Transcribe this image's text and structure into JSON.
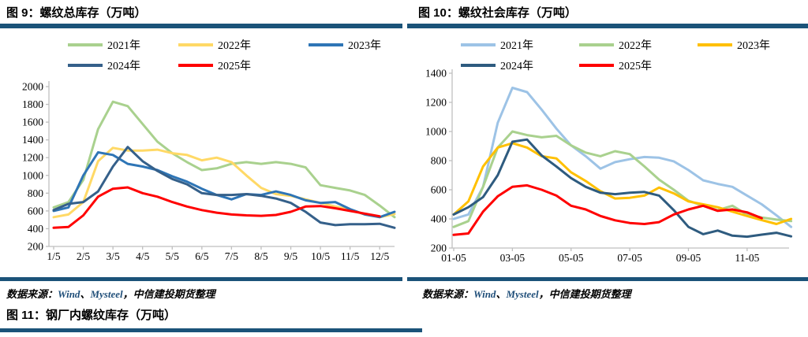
{
  "accent_color": "#1b5379",
  "link_color": "#1f4e79",
  "axis_color": "#bfbfbf",
  "source": {
    "parts": [
      {
        "text": "数据来源：",
        "style": "plain"
      },
      {
        "text": "Wind",
        "style": "link"
      },
      {
        "text": "、",
        "style": "plain"
      },
      {
        "text": "Mysteel",
        "style": "link"
      },
      {
        "text": "，中信建投期货整理",
        "style": "plain"
      }
    ]
  },
  "footer": {
    "next_figure_title": "图 11：钢厂内螺纹库存（万吨）"
  },
  "chart_data": [
    {
      "id": "fig9",
      "type": "line",
      "title": "图 9：螺纹总库存（万吨）",
      "ylim": [
        200,
        2000
      ],
      "xlim": [
        1.17,
        12.67
      ],
      "grid": false,
      "legend_position": "top",
      "yticks": [
        200,
        400,
        600,
        800,
        1000,
        1200,
        1400,
        1600,
        1800,
        2000
      ],
      "xticks": [
        {
          "pos": 1.17,
          "label": "1/5"
        },
        {
          "pos": 2.17,
          "label": "2/5"
        },
        {
          "pos": 3.17,
          "label": "3/5"
        },
        {
          "pos": 4.17,
          "label": "4/5"
        },
        {
          "pos": 5.17,
          "label": "5/5"
        },
        {
          "pos": 6.17,
          "label": "6/5"
        },
        {
          "pos": 7.17,
          "label": "7/5"
        },
        {
          "pos": 8.17,
          "label": "8/5"
        },
        {
          "pos": 9.17,
          "label": "9/5"
        },
        {
          "pos": 10.17,
          "label": "10/5"
        },
        {
          "pos": 11.17,
          "label": "11/5"
        },
        {
          "pos": 12.17,
          "label": "12/5"
        }
      ],
      "x": [
        1.17,
        1.67,
        2.17,
        2.67,
        3.17,
        3.67,
        4.17,
        4.67,
        5.17,
        5.67,
        6.17,
        6.67,
        7.17,
        7.67,
        8.17,
        8.67,
        9.17,
        9.67,
        10.17,
        10.67,
        11.17,
        11.67,
        12.17,
        12.67
      ],
      "series": [
        {
          "name": "2021年",
          "color": "#a9d18e",
          "values": [
            640,
            700,
            950,
            1520,
            1830,
            1780,
            1580,
            1380,
            1250,
            1150,
            1060,
            1080,
            1130,
            1150,
            1130,
            1150,
            1130,
            1090,
            890,
            860,
            830,
            780,
            660,
            530
          ]
        },
        {
          "name": "2022年",
          "color": "#ffd966",
          "values": [
            530,
            560,
            700,
            1160,
            1310,
            1280,
            1280,
            1290,
            1250,
            1230,
            1170,
            1200,
            1150,
            1000,
            860,
            790,
            770,
            730,
            690,
            650,
            615,
            560,
            530,
            565
          ]
        },
        {
          "name": "2023年",
          "color": "#2e75b6",
          "values": [
            600,
            640,
            1000,
            1260,
            1230,
            1130,
            1100,
            1060,
            990,
            930,
            850,
            780,
            730,
            790,
            780,
            820,
            780,
            720,
            690,
            700,
            620,
            560,
            530,
            590
          ]
        },
        {
          "name": "2024年",
          "color": "#35608a",
          "values": [
            610,
            680,
            700,
            820,
            1100,
            1320,
            1160,
            1050,
            960,
            900,
            800,
            780,
            780,
            790,
            770,
            740,
            690,
            590,
            470,
            440,
            450,
            450,
            455,
            410
          ]
        },
        {
          "name": "2025年",
          "color": "#ff0000",
          "values": [
            410,
            420,
            550,
            760,
            850,
            865,
            800,
            760,
            700,
            650,
            610,
            580,
            560,
            550,
            545,
            555,
            590,
            650,
            655,
            630,
            600,
            570,
            540,
            null
          ]
        }
      ]
    },
    {
      "id": "fig10",
      "type": "line",
      "title": "图 10：螺纹社会库存（万吨）",
      "ylim": [
        200,
        1400
      ],
      "xlim": [
        1.17,
        12.6
      ],
      "grid": false,
      "legend_position": "top",
      "yticks": [
        200,
        400,
        600,
        800,
        1000,
        1200,
        1400
      ],
      "xticks": [
        {
          "pos": 1.17,
          "label": "01-05"
        },
        {
          "pos": 3.17,
          "label": "03-05"
        },
        {
          "pos": 5.17,
          "label": "05-05"
        },
        {
          "pos": 7.17,
          "label": "07-05"
        },
        {
          "pos": 9.17,
          "label": "09-05"
        },
        {
          "pos": 11.17,
          "label": "11-05"
        }
      ],
      "x": [
        1.17,
        1.67,
        2.17,
        2.67,
        3.17,
        3.67,
        4.17,
        4.67,
        5.17,
        5.67,
        6.17,
        6.67,
        7.17,
        7.67,
        8.17,
        8.67,
        9.17,
        9.67,
        10.17,
        10.67,
        11.17,
        11.67,
        12.17,
        12.67
      ],
      "series": [
        {
          "name": "2021年",
          "color": "#9dc3e6",
          "values": [
            400,
            430,
            620,
            1060,
            1300,
            1270,
            1150,
            1020,
            905,
            830,
            745,
            790,
            810,
            825,
            820,
            795,
            735,
            665,
            640,
            620,
            560,
            500,
            425,
            345
          ]
        },
        {
          "name": "2022年",
          "color": "#a9d18e",
          "values": [
            345,
            385,
            620,
            890,
            1000,
            975,
            960,
            970,
            905,
            855,
            830,
            865,
            845,
            760,
            670,
            600,
            525,
            490,
            460,
            490,
            430,
            410,
            395,
            385
          ]
        },
        {
          "name": "2023年",
          "color": "#ffc000",
          "values": [
            430,
            520,
            760,
            890,
            920,
            890,
            830,
            815,
            720,
            660,
            590,
            540,
            545,
            560,
            615,
            575,
            520,
            500,
            480,
            450,
            420,
            392,
            365,
            400
          ]
        },
        {
          "name": "2024年",
          "color": "#2e5b7f",
          "values": [
            430,
            480,
            550,
            700,
            930,
            945,
            835,
            760,
            680,
            620,
            580,
            570,
            580,
            585,
            560,
            460,
            345,
            295,
            320,
            285,
            278,
            292,
            305,
            280
          ]
        },
        {
          "name": "2025年",
          "color": "#ff0000",
          "values": [
            290,
            300,
            450,
            555,
            620,
            630,
            600,
            560,
            490,
            465,
            420,
            390,
            372,
            365,
            378,
            430,
            465,
            490,
            455,
            465,
            445,
            405,
            null,
            null
          ]
        }
      ]
    }
  ]
}
